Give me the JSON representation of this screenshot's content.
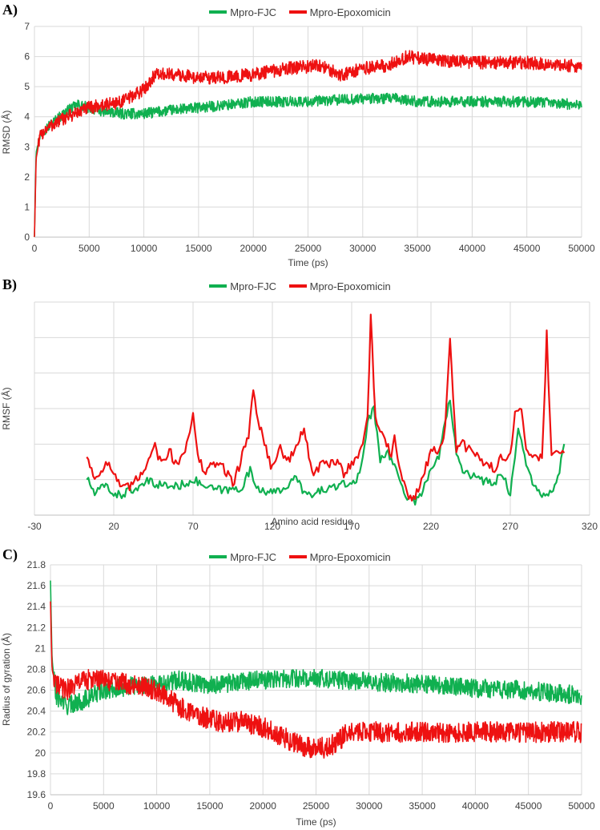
{
  "colors": {
    "fjc": "#10b050",
    "epoxomicin": "#ee1111",
    "grid": "#d9d9d9",
    "axis": "#bfbfbf"
  },
  "chart_data": [
    {
      "id": "A",
      "panel_label": "A)",
      "type": "line",
      "xlabel": "Time (ps)",
      "ylabel": "RMSD (Å)",
      "xlim": [
        0,
        50000
      ],
      "ylim": [
        0,
        7
      ],
      "xticks": [
        0,
        5000,
        10000,
        15000,
        20000,
        25000,
        30000,
        35000,
        40000,
        45000,
        50000
      ],
      "yticks": [
        0,
        1,
        2,
        3,
        4,
        5,
        6,
        7
      ],
      "legend": [
        "Mpro-FJC",
        "Mpro-Epoxomicin"
      ],
      "series": [
        {
          "name": "Mpro-FJC",
          "color": "#10b050",
          "noise": 0.18,
          "x": [
            0,
            150,
            500,
            1000,
            2000,
            3000,
            4000,
            5000,
            6000,
            8000,
            10000,
            12000,
            15000,
            18000,
            20000,
            25000,
            30000,
            33000,
            35000,
            40000,
            45000,
            50000
          ],
          "y": [
            0,
            2.8,
            3.4,
            3.6,
            3.9,
            4.2,
            4.4,
            4.3,
            4.2,
            4.1,
            4.1,
            4.2,
            4.3,
            4.4,
            4.5,
            4.5,
            4.6,
            4.6,
            4.5,
            4.5,
            4.5,
            4.4
          ]
        },
        {
          "name": "Mpro-Epoxomicin",
          "color": "#ee1111",
          "noise": 0.22,
          "x": [
            0,
            150,
            500,
            1000,
            2000,
            3000,
            5000,
            8000,
            10000,
            11000,
            13000,
            15000,
            17000,
            20000,
            23000,
            26000,
            28000,
            30000,
            32000,
            33000,
            34000,
            36000,
            40000,
            45000,
            48000,
            50000
          ],
          "y": [
            0,
            2.6,
            3.3,
            3.6,
            3.8,
            4.0,
            4.3,
            4.5,
            4.9,
            5.4,
            5.4,
            5.3,
            5.3,
            5.4,
            5.6,
            5.7,
            5.4,
            5.6,
            5.7,
            5.8,
            6.0,
            5.9,
            5.8,
            5.8,
            5.7,
            5.7
          ]
        }
      ]
    },
    {
      "id": "B",
      "panel_label": "B)",
      "type": "line",
      "xlabel": "Amino acid residue",
      "ylabel": "RMSF (Å)",
      "xlim": [
        -30,
        320
      ],
      "ylim": [
        0,
        6
      ],
      "xticks": [
        -30,
        20,
        70,
        120,
        170,
        220,
        270,
        320
      ],
      "yticks": [
        0,
        1,
        2,
        3,
        4,
        5,
        6
      ],
      "show_ytick_labels": false,
      "legend": [
        "Mpro-FJC",
        "Mpro-Epoxomicin"
      ],
      "series": [
        {
          "name": "Mpro-FJC",
          "color": "#10b050",
          "noise": 0.12,
          "x": [
            3,
            8,
            15,
            20,
            25,
            30,
            35,
            40,
            50,
            60,
            70,
            80,
            90,
            100,
            106,
            110,
            120,
            130,
            135,
            140,
            145,
            150,
            160,
            170,
            175,
            180,
            184,
            188,
            192,
            197,
            202,
            205,
            210,
            215,
            220,
            225,
            228,
            232,
            236,
            240,
            250,
            260,
            265,
            270,
            275,
            280,
            285,
            290,
            295,
            300,
            304
          ],
          "y": [
            1.05,
            0.6,
            0.85,
            0.6,
            0.55,
            0.75,
            0.65,
            0.95,
            0.85,
            0.8,
            1.0,
            0.75,
            0.7,
            0.75,
            1.25,
            0.8,
            0.6,
            0.85,
            1.05,
            0.65,
            0.5,
            0.7,
            0.8,
            0.9,
            1.1,
            2.6,
            3.0,
            1.6,
            1.8,
            1.4,
            0.8,
            0.5,
            0.4,
            0.7,
            1.3,
            1.6,
            2.5,
            3.3,
            1.8,
            1.3,
            1.0,
            0.9,
            1.2,
            0.6,
            2.4,
            1.5,
            0.8,
            0.5,
            0.6,
            1.0,
            2.0
          ]
        },
        {
          "name": "Mpro-Epoxomicin",
          "color": "#ee1111",
          "noise": 0.15,
          "x": [
            3,
            8,
            15,
            20,
            25,
            30,
            35,
            40,
            45,
            50,
            55,
            60,
            65,
            70,
            73,
            78,
            85,
            90,
            95,
            100,
            105,
            108,
            112,
            120,
            125,
            130,
            135,
            140,
            145,
            150,
            160,
            165,
            170,
            175,
            180,
            182,
            185,
            190,
            195,
            197,
            200,
            205,
            210,
            215,
            220,
            225,
            229,
            232,
            236,
            240,
            250,
            260,
            265,
            270,
            273,
            277,
            280,
            285,
            290,
            293,
            296,
            300,
            304
          ],
          "y": [
            1.7,
            1.0,
            1.5,
            1.2,
            0.7,
            0.8,
            1.0,
            1.4,
            2.0,
            1.5,
            1.8,
            1.4,
            1.9,
            2.8,
            1.6,
            1.2,
            1.5,
            1.3,
            0.9,
            1.5,
            2.3,
            3.5,
            2.5,
            1.3,
            1.9,
            1.5,
            1.9,
            2.5,
            1.1,
            1.4,
            1.5,
            1.2,
            1.5,
            1.7,
            2.7,
            5.6,
            2.7,
            2.3,
            1.6,
            2.3,
            1.4,
            0.5,
            0.5,
            1.0,
            1.9,
            1.8,
            2.4,
            5.0,
            1.8,
            2.0,
            1.6,
            1.3,
            1.7,
            1.6,
            2.8,
            3.0,
            2.0,
            1.6,
            1.6,
            5.1,
            1.6,
            1.8,
            1.9
          ]
        }
      ]
    },
    {
      "id": "C",
      "panel_label": "C)",
      "type": "line",
      "xlabel": "Time (ps)",
      "ylabel": "Radius of gyration (Å)",
      "xlim": [
        0,
        50000
      ],
      "ylim": [
        19.6,
        21.8
      ],
      "xticks": [
        0,
        5000,
        10000,
        15000,
        20000,
        25000,
        30000,
        35000,
        40000,
        45000,
        50000
      ],
      "yticks": [
        19.6,
        19.8,
        20,
        20.2,
        20.4,
        20.6,
        20.8,
        21,
        21.2,
        21.4,
        21.6,
        21.8
      ],
      "legend": [
        "Mpro-FJC",
        "Mpro-Epoxomicin"
      ],
      "series": [
        {
          "name": "Mpro-FJC",
          "color": "#10b050",
          "noise": 0.09,
          "x": [
            0,
            150,
            500,
            1500,
            3000,
            5000,
            8000,
            10000,
            12000,
            15000,
            18000,
            20000,
            25000,
            30000,
            35000,
            40000,
            45000,
            50000
          ],
          "y": [
            21.65,
            20.9,
            20.55,
            20.45,
            20.5,
            20.6,
            20.65,
            20.65,
            20.7,
            20.65,
            20.68,
            20.7,
            20.72,
            20.68,
            20.66,
            20.62,
            20.6,
            20.55
          ]
        },
        {
          "name": "Mpro-Epoxomicin",
          "color": "#ee1111",
          "noise": 0.1,
          "x": [
            0,
            150,
            500,
            1500,
            3000,
            5000,
            8000,
            10000,
            12000,
            14000,
            16000,
            18000,
            20000,
            22000,
            24000,
            26000,
            27000,
            28000,
            30000,
            35000,
            40000,
            45000,
            50000
          ],
          "y": [
            21.45,
            20.8,
            20.65,
            20.6,
            20.7,
            20.7,
            20.65,
            20.6,
            20.45,
            20.35,
            20.3,
            20.3,
            20.25,
            20.15,
            20.05,
            20.05,
            20.1,
            20.2,
            20.2,
            20.2,
            20.2,
            20.2,
            20.2
          ]
        }
      ]
    }
  ]
}
